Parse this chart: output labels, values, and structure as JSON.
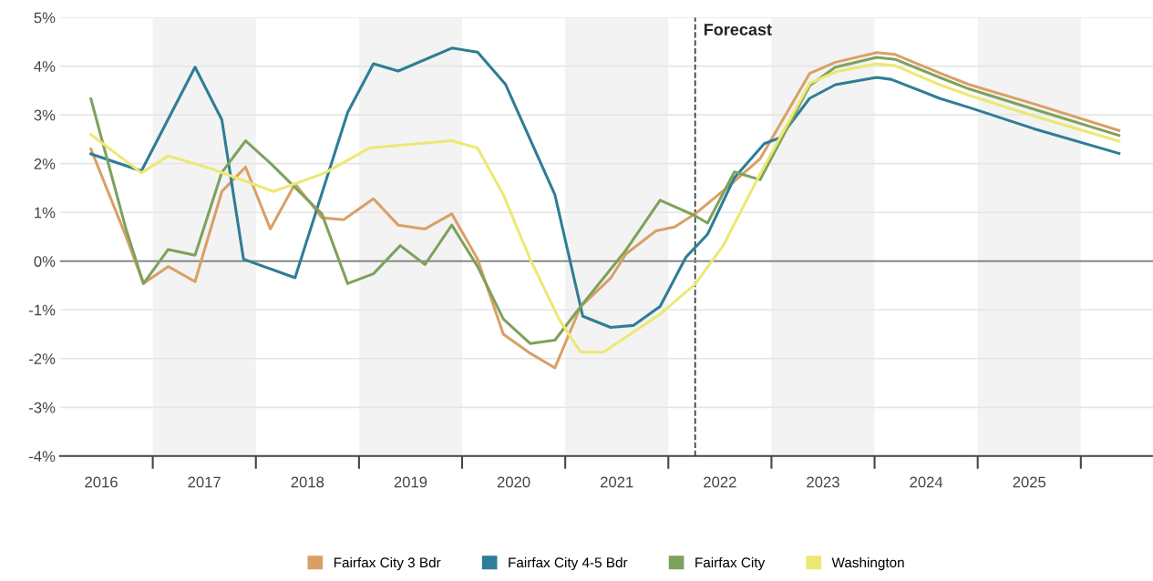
{
  "chart_data": {
    "type": "line",
    "xlim": [
      2016.1,
      2026.7
    ],
    "xticks": [
      {
        "value": 2016.5,
        "label": "2016"
      },
      {
        "value": 2017,
        "label": null
      },
      {
        "value": 2017.5,
        "label": "2017"
      },
      {
        "value": 2018,
        "label": null
      },
      {
        "value": 2018.5,
        "label": "2018"
      },
      {
        "value": 2019,
        "label": null
      },
      {
        "value": 2019.5,
        "label": "2019"
      },
      {
        "value": 2020,
        "label": null
      },
      {
        "value": 2020.5,
        "label": "2020"
      },
      {
        "value": 2021,
        "label": null
      },
      {
        "value": 2021.5,
        "label": "2021"
      },
      {
        "value": 2022,
        "label": null
      },
      {
        "value": 2022.5,
        "label": "2022"
      },
      {
        "value": 2023,
        "label": null
      },
      {
        "value": 2023.5,
        "label": "2023"
      },
      {
        "value": 2024,
        "label": null
      },
      {
        "value": 2024.5,
        "label": "2024"
      },
      {
        "value": 2025,
        "label": null
      },
      {
        "value": 2025.5,
        "label": "2025"
      },
      {
        "value": 2026,
        "label": null
      }
    ],
    "ylim": [
      -4,
      5
    ],
    "yticks": [
      {
        "value": -4,
        "label": "-4%"
      },
      {
        "value": -3,
        "label": "-3%"
      },
      {
        "value": -2,
        "label": "-2%"
      },
      {
        "value": -1,
        "label": "-1%"
      },
      {
        "value": 0,
        "label": "0%"
      },
      {
        "value": 1,
        "label": "1%"
      },
      {
        "value": 2,
        "label": "2%"
      },
      {
        "value": 3,
        "label": "3%"
      },
      {
        "value": 4,
        "label": "4%"
      },
      {
        "value": 5,
        "label": "5%"
      }
    ],
    "grid": "y",
    "legend": "bottom",
    "marker": "none",
    "line_style": "solid",
    "ref_lines": [
      {
        "axis": "x",
        "value": 2022.26,
        "label": "Forecast",
        "color": "#333333",
        "line_style": "dashed"
      },
      {
        "axis": "y",
        "value": 0,
        "color": "#888888",
        "line_style": "solid"
      }
    ],
    "bands": [
      {
        "axis": "x",
        "from": 2017,
        "to": 2018,
        "color": "#f3f3f3"
      },
      {
        "axis": "x",
        "from": 2019,
        "to": 2020,
        "color": "#f3f3f3"
      },
      {
        "axis": "x",
        "from": 2021,
        "to": 2022,
        "color": "#f3f3f3"
      },
      {
        "axis": "x",
        "from": 2023,
        "to": 2024,
        "color": "#f3f3f3"
      },
      {
        "axis": "x",
        "from": 2025,
        "to": 2026,
        "color": "#f3f3f3"
      }
    ],
    "series": [
      {
        "name": "Fairfax City 3 Bdr",
        "color": "#d9a066",
        "x": [
          2016.4,
          2016.74,
          2016.91,
          2017.15,
          2017.41,
          2017.67,
          2017.9,
          2018.14,
          2018.38,
          2018.64,
          2018.85,
          2019.14,
          2019.38,
          2019.64,
          2019.9,
          2020.15,
          2020.4,
          2020.66,
          2020.9,
          2021.15,
          2021.44,
          2021.59,
          2021.88,
          2022.06,
          2022.26,
          2022.57,
          2022.89,
          2023.37,
          2023.62,
          2024.02,
          2024.2,
          2024.63,
          2024.92,
          2025.54,
          2026.37
        ],
        "values": [
          2.3,
          0.51,
          -0.46,
          -0.11,
          -0.42,
          1.43,
          1.93,
          0.66,
          1.59,
          0.89,
          0.85,
          1.28,
          0.74,
          0.66,
          0.97,
          0.04,
          -1.5,
          -1.89,
          -2.19,
          -0.93,
          -0.35,
          0.15,
          0.62,
          0.7,
          0.97,
          1.51,
          2.1,
          3.85,
          4.08,
          4.28,
          4.24,
          3.86,
          3.62,
          3.23,
          2.68
        ]
      },
      {
        "name": "Fairfax City 4-5 Bdr",
        "color": "#2f7d96",
        "x": [
          2016.4,
          2016.89,
          2017.41,
          2017.67,
          2017.88,
          2018.38,
          2018.89,
          2019.14,
          2019.38,
          2019.9,
          2020.15,
          2020.42,
          2020.9,
          2021.17,
          2021.44,
          2021.66,
          2021.92,
          2022.17,
          2022.38,
          2022.64,
          2022.93,
          2023.08,
          2023.37,
          2023.62,
          2024.02,
          2024.16,
          2024.63,
          2024.92,
          2025.54,
          2026.37
        ],
        "values": [
          2.2,
          1.85,
          3.98,
          2.9,
          0.04,
          -0.34,
          3.05,
          4.05,
          3.9,
          4.37,
          4.29,
          3.63,
          1.36,
          -1.13,
          -1.36,
          -1.32,
          -0.93,
          0.08,
          0.55,
          1.71,
          2.41,
          2.53,
          3.34,
          3.62,
          3.77,
          3.73,
          3.34,
          3.15,
          2.72,
          2.21
        ]
      },
      {
        "name": "Fairfax City",
        "color": "#7ea25c",
        "x": [
          2016.4,
          2016.74,
          2016.91,
          2017.15,
          2017.41,
          2017.67,
          2017.9,
          2018.14,
          2018.38,
          2018.64,
          2018.89,
          2019.14,
          2019.4,
          2019.64,
          2019.9,
          2020.15,
          2020.4,
          2020.66,
          2020.9,
          2021.15,
          2021.59,
          2021.92,
          2022.26,
          2022.38,
          2022.64,
          2022.89,
          2023.37,
          2023.62,
          2024.02,
          2024.2,
          2024.63,
          2024.92,
          2025.54,
          2026.37
        ],
        "values": [
          3.33,
          0.66,
          -0.46,
          0.24,
          0.12,
          1.82,
          2.47,
          2.01,
          1.51,
          0.97,
          -0.46,
          -0.26,
          0.32,
          -0.07,
          0.74,
          -0.11,
          -1.19,
          -1.69,
          -1.62,
          -0.93,
          0.23,
          1.25,
          0.93,
          0.78,
          1.83,
          1.67,
          3.6,
          3.98,
          4.18,
          4.14,
          3.77,
          3.53,
          3.12,
          2.58
        ]
      },
      {
        "name": "Washington",
        "color": "#ece874",
        "x": [
          2016.4,
          2016.89,
          2017.15,
          2017.56,
          2018.17,
          2018.67,
          2019.1,
          2019.9,
          2020.15,
          2020.4,
          2020.66,
          2020.94,
          2021.15,
          2021.37,
          2021.92,
          2022.26,
          2022.53,
          2022.89,
          2023.37,
          2023.62,
          2024.02,
          2024.2,
          2024.63,
          2024.92,
          2025.54,
          2026.37
        ],
        "values": [
          2.6,
          1.81,
          2.16,
          1.9,
          1.43,
          1.81,
          2.32,
          2.47,
          2.32,
          1.36,
          0.04,
          -1.19,
          -1.87,
          -1.87,
          -1.09,
          -0.47,
          0.31,
          1.79,
          3.65,
          3.88,
          4.05,
          4.01,
          3.62,
          3.4,
          2.98,
          2.46
        ]
      }
    ]
  }
}
